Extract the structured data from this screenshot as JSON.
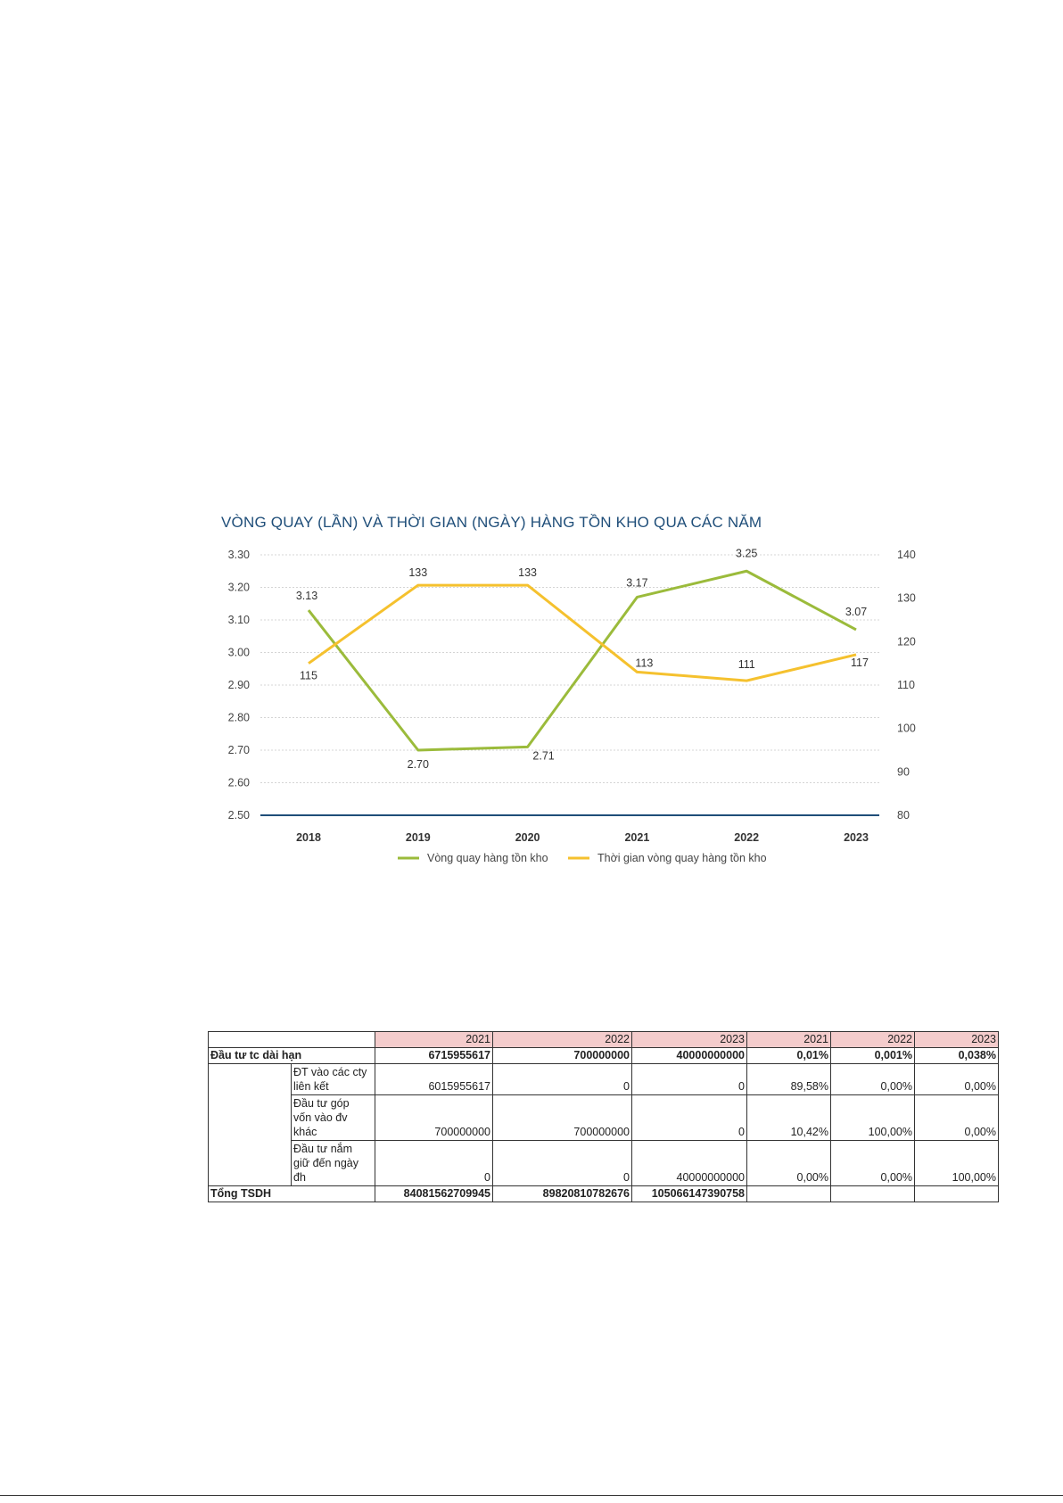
{
  "chart_data": {
    "type": "line",
    "title": "VÒNG QUAY (LẦN) VÀ THỜI GIAN (NGÀY) HÀNG TỒN KHO QUA CÁC NĂM",
    "categories": [
      "2018",
      "2019",
      "2020",
      "2021",
      "2022",
      "2023"
    ],
    "series": [
      {
        "name": "Vòng quay hàng tồn kho",
        "axis": "left",
        "color": "#9bbb3b",
        "values": [
          3.13,
          2.7,
          2.71,
          3.17,
          3.25,
          3.07
        ],
        "labels": [
          "3.13",
          "2.70",
          "2.71",
          "3.17",
          "3.25",
          "3.07"
        ]
      },
      {
        "name": "Thời gian vòng quay hàng tồn kho",
        "axis": "right",
        "color": "#f5c12e",
        "values": [
          115,
          133,
          133,
          113,
          111,
          117
        ],
        "labels": [
          "115",
          "133",
          "133",
          "113",
          "111",
          "117"
        ]
      }
    ],
    "y_left": {
      "min": 2.5,
      "max": 3.3,
      "ticks": [
        "3.30",
        "3.20",
        "3.10",
        "3.00",
        "2.90",
        "2.80",
        "2.70",
        "2.60",
        "2.50"
      ]
    },
    "y_right": {
      "min": 80,
      "max": 140,
      "ticks": [
        "140",
        "130",
        "120",
        "110",
        "100",
        "90",
        "80"
      ]
    },
    "grid": "dotted horizontal",
    "legend": "bottom-center"
  },
  "table": {
    "header": [
      "",
      "",
      "2021",
      "2022",
      "2023",
      "2021",
      "2022",
      "2023"
    ],
    "rows": [
      {
        "group": "Đầu tư tc dài hạn",
        "sub": "",
        "values": [
          "6715955617",
          "700000000",
          "40000000000",
          "0,01%",
          "0,001%",
          "0,038%"
        ],
        "bold": true
      },
      {
        "group": "",
        "sub": [
          "ĐT vào các cty",
          " liên kết"
        ],
        "values": [
          "6015955617",
          "0",
          "0",
          "89,58%",
          "0,00%",
          "0,00%"
        ],
        "bold": false
      },
      {
        "group": "",
        "sub": [
          "Đầu tư góp",
          "vốn vào đv khác"
        ],
        "values": [
          "700000000",
          "700000000",
          "0",
          "10,42%",
          "100,00%",
          "0,00%"
        ],
        "bold": false
      },
      {
        "group": "",
        "sub": [
          "Đầu tư nắm",
          "giữ đến ngày đh"
        ],
        "values": [
          "0",
          "0",
          "40000000000",
          "0,00%",
          "0,00%",
          "100,00%"
        ],
        "bold": false
      },
      {
        "group": "Tổng TSDH",
        "sub": "",
        "values": [
          "84081562709945",
          "89820810782676",
          "105066147390758",
          "",
          "",
          ""
        ],
        "bold": true
      }
    ]
  }
}
